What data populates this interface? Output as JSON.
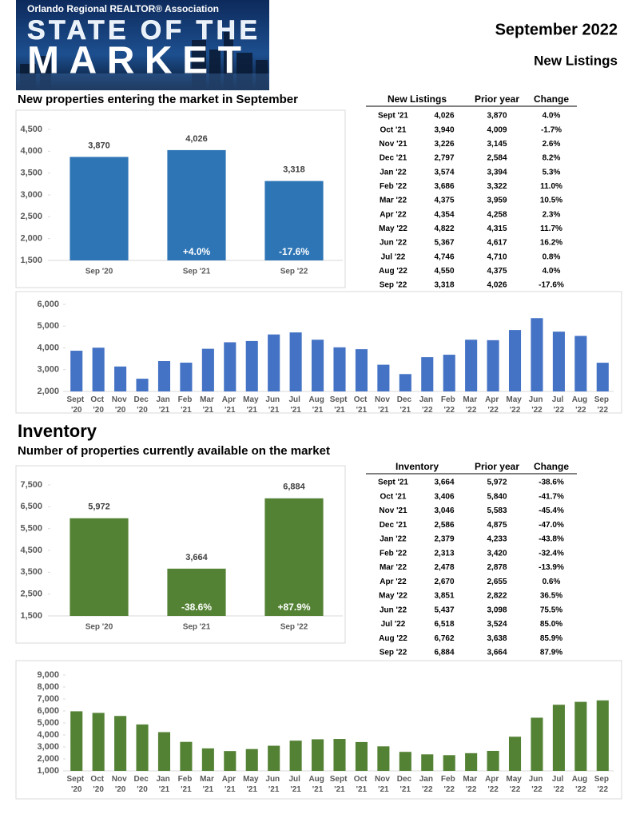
{
  "header": {
    "association": "Orlando Regional REALTOR® Association",
    "title_line1": "STATE OF THE",
    "title_line2": "MARKET",
    "date": "September 2022",
    "section": "New Listings"
  },
  "listings_subtitle": "New properties entering the market in September",
  "inventory_heading": {
    "title": "Inventory",
    "subtitle": "Number of properties currently available on the market"
  },
  "chart_data": [
    {
      "type": "bar",
      "categories": [
        "Sep '20",
        "Sep '21",
        "Sep '22"
      ],
      "values": [
        3870,
        4026,
        3318
      ],
      "value_labels": [
        "3,870",
        "4,026",
        "3,318"
      ],
      "change_labels": [
        null,
        "+4.0%",
        "-17.6%"
      ],
      "color": "#2e75b6",
      "ylim": [
        1500,
        4500
      ],
      "yticks": [
        {
          "value": 1500,
          "label": "1,500"
        },
        {
          "value": 2000,
          "label": "2,000"
        },
        {
          "value": 2500,
          "label": "2,500"
        },
        {
          "value": 3000,
          "label": "3,000"
        },
        {
          "value": 3500,
          "label": "3,500"
        },
        {
          "value": 4000,
          "label": "4,000"
        },
        {
          "value": 4500,
          "label": "4,500"
        }
      ],
      "grid": false
    },
    {
      "type": "bar",
      "categories": [
        "Sept '20",
        "Oct '20",
        "Nov '20",
        "Dec '20",
        "Jan '21",
        "Feb '21",
        "Mar '21",
        "Apr '21",
        "May '21",
        "Jun '21",
        "Jul '21",
        "Aug '21",
        "Sept '21",
        "Oct '21",
        "Nov '21",
        "Dec '21",
        "Jan '22",
        "Feb '22",
        "Mar '22",
        "Apr '22",
        "May '22",
        "Jun '22",
        "Jul '22",
        "Aug '22",
        "Sep '22"
      ],
      "values": [
        3870,
        4009,
        3145,
        2584,
        3394,
        3322,
        3959,
        4258,
        4315,
        4617,
        4710,
        4375,
        4026,
        3940,
        3226,
        2797,
        3574,
        3686,
        4375,
        4354,
        4822,
        5367,
        4746,
        4550,
        3318
      ],
      "color": "#4472c4",
      "ylim": [
        2000,
        6000
      ],
      "yticks": [
        {
          "value": 2000,
          "label": "2,000"
        },
        {
          "value": 3000,
          "label": "3,000"
        },
        {
          "value": 4000,
          "label": "4,000"
        },
        {
          "value": 5000,
          "label": "5,000"
        },
        {
          "value": 6000,
          "label": "6,000"
        }
      ],
      "grid": false
    },
    {
      "type": "bar",
      "categories": [
        "Sep '20",
        "Sep '21",
        "Sep '22"
      ],
      "values": [
        5972,
        3664,
        6884
      ],
      "value_labels": [
        "5,972",
        "3,664",
        "6,884"
      ],
      "change_labels": [
        null,
        "-38.6%",
        "+87.9%"
      ],
      "color": "#548235",
      "ylim": [
        1500,
        7500
      ],
      "yticks": [
        {
          "value": 1500,
          "label": "1,500"
        },
        {
          "value": 2500,
          "label": "2,500"
        },
        {
          "value": 3500,
          "label": "3,500"
        },
        {
          "value": 4500,
          "label": "4,500"
        },
        {
          "value": 5500,
          "label": "5,500"
        },
        {
          "value": 6500,
          "label": "6,500"
        },
        {
          "value": 7500,
          "label": "7,500"
        }
      ],
      "grid": false
    },
    {
      "type": "bar",
      "categories": [
        "Sept '20",
        "Oct '20",
        "Nov '20",
        "Dec '20",
        "Jan '21",
        "Feb '21",
        "Mar '21",
        "Apr '21",
        "May '21",
        "Jun '21",
        "Jul '21",
        "Aug '21",
        "Sept '21",
        "Oct '21",
        "Nov '21",
        "Dec '21",
        "Jan '22",
        "Feb '22",
        "Mar '22",
        "Apr '22",
        "May '22",
        "Jun '22",
        "Jul '22",
        "Aug '22",
        "Sep '22"
      ],
      "values": [
        5972,
        5840,
        5583,
        4875,
        4233,
        3420,
        2878,
        2655,
        2822,
        3098,
        3524,
        3638,
        3664,
        3406,
        3046,
        2586,
        2379,
        2313,
        2478,
        2670,
        3851,
        5437,
        6518,
        6762,
        6884
      ],
      "color": "#548235",
      "ylim": [
        1000,
        9000
      ],
      "yticks": [
        {
          "value": 1000,
          "label": "1,000"
        },
        {
          "value": 2000,
          "label": "2,000"
        },
        {
          "value": 3000,
          "label": "3,000"
        },
        {
          "value": 4000,
          "label": "4,000"
        },
        {
          "value": 5000,
          "label": "5,000"
        },
        {
          "value": 6000,
          "label": "6,000"
        },
        {
          "value": 7000,
          "label": "7,000"
        },
        {
          "value": 8000,
          "label": "8,000"
        },
        {
          "value": 9000,
          "label": "9,000"
        }
      ],
      "grid": false
    }
  ],
  "tables": [
    {
      "header": [
        "New Listings",
        "Prior year",
        "Change"
      ],
      "rows": [
        [
          "Sept '21",
          "4,026",
          "3,870",
          "4.0%"
        ],
        [
          "Oct '21",
          "3,940",
          "4,009",
          "-1.7%"
        ],
        [
          "Nov '21",
          "3,226",
          "3,145",
          "2.6%"
        ],
        [
          "Dec '21",
          "2,797",
          "2,584",
          "8.2%"
        ],
        [
          "Jan '22",
          "3,574",
          "3,394",
          "5.3%"
        ],
        [
          "Feb '22",
          "3,686",
          "3,322",
          "11.0%"
        ],
        [
          "Mar '22",
          "4,375",
          "3,959",
          "10.5%"
        ],
        [
          "Apr '22",
          "4,354",
          "4,258",
          "2.3%"
        ],
        [
          "May '22",
          "4,822",
          "4,315",
          "11.7%"
        ],
        [
          "Jun '22",
          "5,367",
          "4,617",
          "16.2%"
        ],
        [
          "Jul '22",
          "4,746",
          "4,710",
          "0.8%"
        ],
        [
          "Aug '22",
          "4,550",
          "4,375",
          "4.0%"
        ],
        [
          "Sep '22",
          "3,318",
          "4,026",
          "-17.6%"
        ]
      ]
    },
    {
      "header": [
        "Inventory",
        "Prior year",
        "Change"
      ],
      "rows": [
        [
          "Sept '21",
          "3,664",
          "5,972",
          "-38.6%"
        ],
        [
          "Oct '21",
          "3,406",
          "5,840",
          "-41.7%"
        ],
        [
          "Nov '21",
          "3,046",
          "5,583",
          "-45.4%"
        ],
        [
          "Dec '21",
          "2,586",
          "4,875",
          "-47.0%"
        ],
        [
          "Jan '22",
          "2,379",
          "4,233",
          "-43.8%"
        ],
        [
          "Feb '22",
          "2,313",
          "3,420",
          "-32.4%"
        ],
        [
          "Mar '22",
          "2,478",
          "2,878",
          "-13.9%"
        ],
        [
          "Apr '22",
          "2,670",
          "2,655",
          "0.6%"
        ],
        [
          "May '22",
          "3,851",
          "2,822",
          "36.5%"
        ],
        [
          "Jun '22",
          "5,437",
          "3,098",
          "75.5%"
        ],
        [
          "Jul '22",
          "6,518",
          "3,524",
          "85.0%"
        ],
        [
          "Aug '22",
          "6,762",
          "3,638",
          "85.9%"
        ],
        [
          "Sep '22",
          "6,884",
          "3,664",
          "87.9%"
        ]
      ]
    }
  ]
}
